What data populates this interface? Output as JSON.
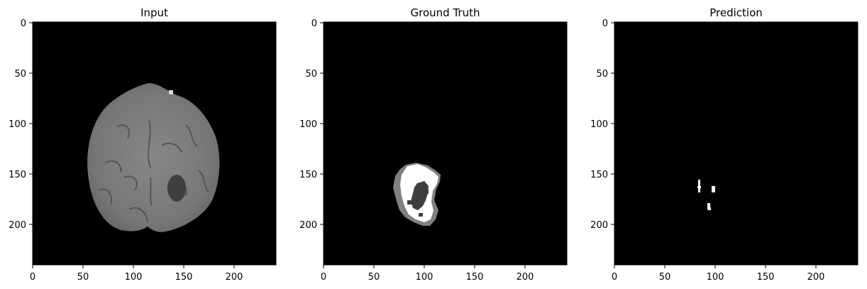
{
  "panels": [
    {
      "title": "Input",
      "content": "brain-mri-slice"
    },
    {
      "title": "Ground Truth",
      "content": "tumor-segmentation-mask"
    },
    {
      "title": "Prediction",
      "content": "predicted-segmentation-mask"
    }
  ],
  "axes": {
    "x_ticks": [
      "0",
      "50",
      "100",
      "150",
      "200"
    ],
    "y_ticks": [
      "0",
      "50",
      "100",
      "150",
      "200"
    ]
  },
  "colors": {
    "background": "#ffffff",
    "image_background": "#000000",
    "brain_tissue": "#7b7b7b",
    "tumor_core": "#3f3f3f",
    "mask_bright": "#ffffff",
    "mask_mid": "#808080"
  }
}
